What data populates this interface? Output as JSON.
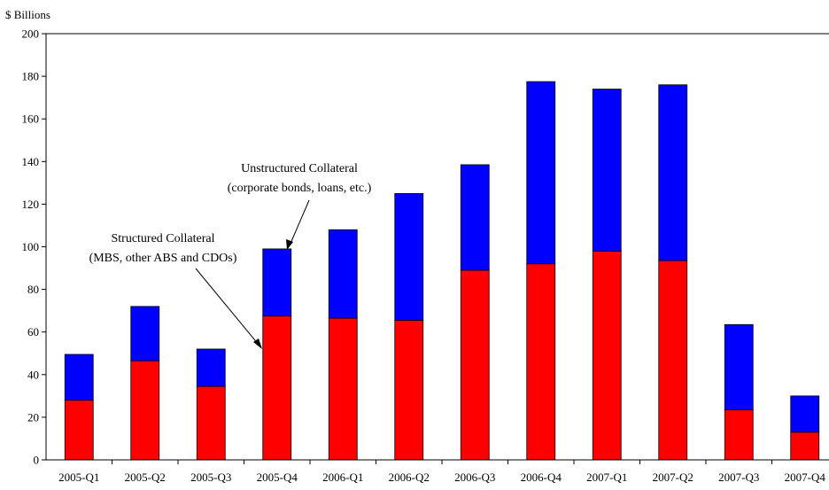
{
  "chart_data": {
    "type": "bar",
    "stacked": true,
    "unit_label": "$ Billions",
    "categories": [
      "2005-Q1",
      "2005-Q2",
      "2005-Q3",
      "2005-Q4",
      "2006-Q1",
      "2006-Q2",
      "2006-Q3",
      "2006-Q4",
      "2007-Q1",
      "2007-Q2",
      "2007-Q3",
      "2007-Q4"
    ],
    "series": [
      {
        "values": [
          28,
          46.5,
          34.5,
          67.5,
          66.5,
          65.5,
          89,
          92,
          98,
          93.5,
          23.5,
          13
        ],
        "color": "#ff0000"
      },
      {
        "values": [
          21.5,
          25.5,
          17.5,
          31.5,
          41.5,
          59.5,
          49.5,
          85.5,
          76,
          82.5,
          40,
          17
        ],
        "color": "#0000ff"
      }
    ],
    "ylim": [
      0,
      200
    ],
    "yticks": [
      0,
      20,
      40,
      60,
      80,
      100,
      120,
      140,
      160,
      180,
      200
    ],
    "grid": false,
    "annotations": {
      "unstructured": {
        "line1": "Unstructured Collateral",
        "line2": "(corporate bonds, loans, etc.)"
      },
      "structured": {
        "line1": "Structured Collateral",
        "line2": "(MBS, other ABS and CDOs)"
      }
    }
  }
}
